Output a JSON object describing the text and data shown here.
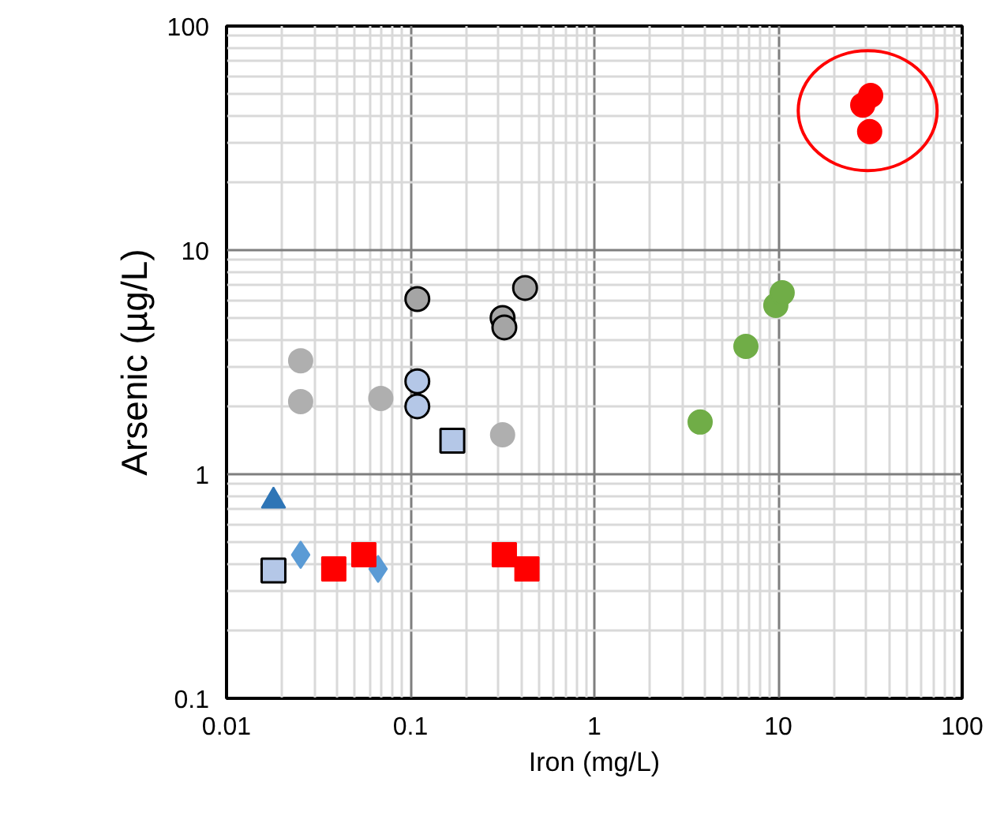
{
  "chart_data": {
    "type": "scatter",
    "xlabel": "Iron (mg/L)",
    "ylabel": "Arsenic (µg/L)",
    "log": "xy",
    "grid": true,
    "xlim": [
      0.01,
      100
    ],
    "ylim": [
      0.1,
      100
    ],
    "xticks": [
      0.01,
      0.1,
      1,
      10,
      100
    ],
    "yticks": [
      0.1,
      1,
      10,
      100
    ],
    "series": [
      {
        "color": "#a5a5a5",
        "marker": "circle",
        "x": [
          0.109,
          0.317,
          0.324,
          0.42
        ],
        "values": [
          6.05,
          4.98,
          4.52,
          6.78
        ]
      },
      {
        "color": "#afafaf",
        "marker": "circle",
        "x": [
          0.0253,
          0.0253,
          0.069,
          0.317
        ],
        "values": [
          3.21,
          2.11,
          2.18,
          1.5
        ]
      },
      {
        "color": "#b4c7e7",
        "marker": "circle",
        "x": [
          0.109,
          0.109
        ],
        "values": [
          2.6,
          2.01
        ]
      },
      {
        "color": "#b4c7e7",
        "marker": "square",
        "x": [
          0.169,
          0.018
        ],
        "values": [
          1.41,
          0.372
        ]
      },
      {
        "color": "#2e75b6",
        "marker": "triangle",
        "x": [
          0.018
        ],
        "values": [
          0.76
        ]
      },
      {
        "color": "#5b9bd5",
        "marker": "diamond",
        "x": [
          0.0253,
          0.0667
        ],
        "values": [
          0.437,
          0.378
        ]
      },
      {
        "color": "#ff0000",
        "marker": "square",
        "x": [
          0.0383,
          0.0558,
          0.324,
          0.43
        ],
        "values": [
          0.378,
          0.437,
          0.437,
          0.378
        ]
      },
      {
        "color": "#70ad47",
        "marker": "circle",
        "x": [
          3.76,
          6.67,
          9.7,
          10.5
        ],
        "values": [
          1.71,
          3.72,
          5.67,
          6.45
        ]
      },
      {
        "color": "#ff0000",
        "marker": "circle",
        "x": [
          28.8,
          31.8,
          31.4
        ],
        "values": [
          44.4,
          49,
          33.8
        ]
      }
    ]
  }
}
